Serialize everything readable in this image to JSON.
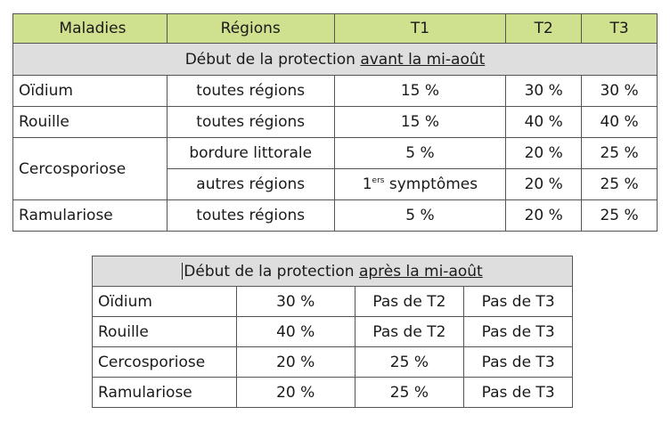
{
  "table1": {
    "headers": [
      "Maladies",
      "Régions",
      "T1",
      "T2",
      "T3"
    ],
    "band_prefix": "Début de la protection ",
    "band_underlined": "avant la mi-août",
    "rows": [
      {
        "maladie": "Oïdium",
        "region": "toutes régions",
        "t1": "15 %",
        "t2": "30 %",
        "t3": "30 %"
      },
      {
        "maladie": "Rouille",
        "region": "toutes régions",
        "t1": "15 %",
        "t2": "40 %",
        "t3": "40 %"
      },
      {
        "maladie": "Cercosporiose",
        "region": "bordure littorale",
        "t1": "5 %",
        "t2": "20 %",
        "t3": "25 %"
      },
      {
        "region": "autres régions",
        "t1_num": "1",
        "t1_sup": "ers",
        "t1_rest": " symptômes",
        "t2": "20 %",
        "t3": "25 %"
      },
      {
        "maladie": "Ramulariose",
        "region": "toutes régions",
        "t1": "5 %",
        "t2": "20 %",
        "t3": "25 %"
      }
    ]
  },
  "table2": {
    "band_prefix": "Début de la protection ",
    "band_underlined": "après la mi-août",
    "rows": [
      {
        "maladie": "Oïdium",
        "t1": "30 %",
        "t2": "Pas de T2",
        "t3": "Pas de T3"
      },
      {
        "maladie": "Rouille",
        "t1": "40 %",
        "t2": "Pas de T2",
        "t3": "Pas de T3"
      },
      {
        "maladie": "Cercosporiose",
        "t1": "20 %",
        "t2": "25 %",
        "t3": "Pas de T3"
      },
      {
        "maladie": "Ramulariose",
        "t1": "20 %",
        "t2": "25 %",
        "t3": "Pas de T3"
      }
    ]
  },
  "colors": {
    "header_green": "#cfe08e",
    "band_gray": "#dedede",
    "border": "#555555"
  }
}
